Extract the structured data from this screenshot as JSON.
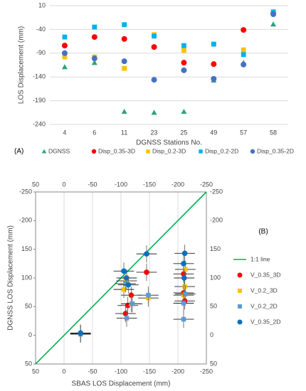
{
  "chart_data": [
    {
      "type": "scatter",
      "ylabel": "LOS Displacement (mm)",
      "xlabel": "DGNSS Stations No.",
      "panel": "(A)",
      "categories": [
        "4",
        "6",
        "11",
        "23",
        "25",
        "49",
        "57",
        "58"
      ],
      "ylim": [
        -240,
        10
      ],
      "yticks": [
        -240,
        -190,
        -140,
        -90,
        -40,
        10
      ],
      "grid": true,
      "series": [
        {
          "name": "DGNSS",
          "color": "#2ea37a",
          "marker": "triangle",
          "values": [
            -119,
            -110,
            -213,
            -215,
            -213,
            -147,
            -110,
            -29
          ]
        },
        {
          "name": "Disp_0.35-3D",
          "color": "#ff0000",
          "marker": "circle",
          "values": [
            -74,
            -56,
            -60,
            -77,
            -110,
            -113,
            -41,
            -6
          ]
        },
        {
          "name": "Disp_0.2-3D",
          "color": "#ffc000",
          "marker": "square",
          "values": [
            -98,
            -98,
            -122,
            -51,
            -84,
            -71,
            -83,
            -5
          ]
        },
        {
          "name": "Disp_0.2-2D",
          "color": "#00b0f0",
          "marker": "square",
          "values": [
            -56,
            -35,
            -30,
            -54,
            -74,
            -71,
            -93,
            -3
          ]
        },
        {
          "name": "Disp_0.35-2D",
          "color": "#4472c4",
          "marker": "circle",
          "values": [
            -90,
            -101,
            -107,
            -146,
            -126,
            -144,
            -114,
            -8
          ]
        }
      ]
    },
    {
      "type": "scatter",
      "ylabel": "DGNSS LOS Displacement (mm)",
      "xlabel": "SBAS LOS Displacement (mm)",
      "panel": "(B)",
      "xlim": [
        50,
        -250
      ],
      "xticks": [
        50,
        0,
        -50,
        -100,
        -150,
        -200,
        -250
      ],
      "ylim": [
        50,
        -250
      ],
      "yticks": [
        50,
        0,
        {
          "value": -50,
          "label": "50"
        },
        {
          "value": -100,
          "label": "100"
        },
        {
          "value": -150,
          "label": "150"
        },
        -200,
        -250
      ],
      "grid": true,
      "reference_line": {
        "name": "1:1 line",
        "color": "#00b050",
        "x": [
          50,
          -250
        ],
        "y": [
          50,
          -250
        ]
      },
      "series": [
        {
          "name": "V_0.35_3D",
          "color": "#ff0000",
          "marker": "circle",
          "x_error": 18,
          "y_error": 15,
          "x": [
            -29,
            -108,
            -112,
            -118,
            -145,
            -210,
            -212,
            -210
          ],
          "y": [
            -3,
            -38,
            -52,
            -70,
            -110,
            -107,
            -60,
            -74
          ]
        },
        {
          "name": "V_0.2_3D",
          "color": "#ffc000",
          "marker": "square",
          "x_error": 18,
          "y_error": 15,
          "x": [
            -29,
            -105,
            -110,
            -118,
            -148,
            -212,
            -210,
            -213
          ],
          "y": [
            -3,
            -80,
            -95,
            -55,
            -65,
            -85,
            -70,
            -115
          ]
        },
        {
          "name": "V_0.2_2D",
          "color": "#5b9bd5",
          "marker": "square",
          "x_error": 18,
          "y_error": 15,
          "x": [
            -29,
            -110,
            -108,
            -120,
            -148,
            -210,
            -213,
            -210
          ],
          "y": [
            -2,
            -30,
            -90,
            -55,
            -70,
            -28,
            -72,
            -56
          ]
        },
        {
          "name": "V_0.35_2D",
          "color": "#0070c0",
          "marker": "circle",
          "x_error": 18,
          "y_error": 15,
          "x": [
            -29,
            -105,
            -110,
            -113,
            -145,
            -212,
            -210,
            -211
          ],
          "y": [
            -4,
            -112,
            -100,
            -88,
            -142,
            -143,
            -125,
            -100
          ]
        }
      ]
    }
  ]
}
